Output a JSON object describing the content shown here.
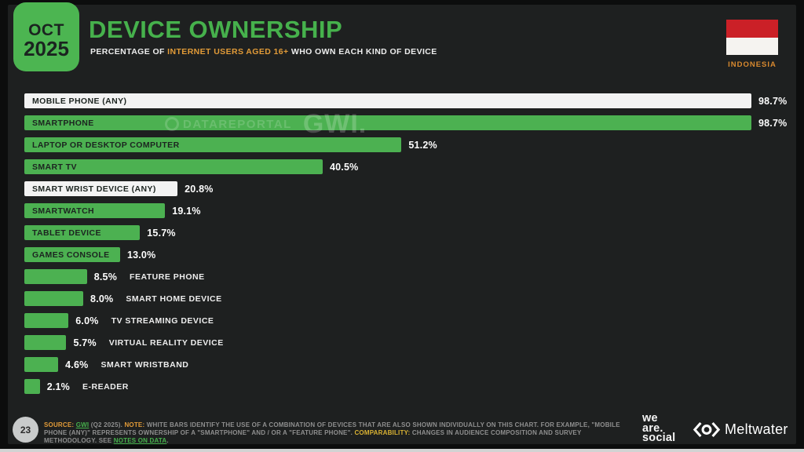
{
  "header": {
    "badge": {
      "month": "OCT",
      "year": "2025"
    },
    "title": "DEVICE OWNERSHIP",
    "subtitle_segments": [
      {
        "text": "PERCENTAGE OF ",
        "style": "sub"
      },
      {
        "text": "INTERNET USERS AGED 16+",
        "style": "accent"
      },
      {
        "text": " WHO OWN EACH KIND OF DEVICE",
        "style": "sub"
      }
    ],
    "country": "INDONESIA"
  },
  "chart_data": {
    "type": "bar",
    "orientation": "horizontal",
    "title": "DEVICE OWNERSHIP",
    "xlabel": "",
    "ylabel": "",
    "unit": "percent",
    "xlim": [
      0,
      100
    ],
    "grid": false,
    "legend": "none",
    "categories": [
      "MOBILE PHONE (ANY)",
      "SMARTPHONE",
      "LAPTOP OR DESKTOP COMPUTER",
      "SMART TV",
      "SMART WRIST DEVICE (ANY)",
      "SMARTWATCH",
      "TABLET DEVICE",
      "GAMES CONSOLE",
      "FEATURE PHONE",
      "SMART HOME DEVICE",
      "TV STREAMING DEVICE",
      "VIRTUAL REALITY DEVICE",
      "SMART WRISTBAND",
      "E-READER"
    ],
    "values": [
      98.7,
      98.7,
      51.2,
      40.5,
      20.8,
      19.1,
      15.7,
      13.0,
      8.5,
      8.0,
      6.0,
      5.7,
      4.6,
      2.1
    ],
    "value_labels": [
      "98.7%",
      "98.7%",
      "51.2%",
      "40.5%",
      "20.8%",
      "19.1%",
      "15.7%",
      "13.0%",
      "8.5%",
      "8.0%",
      "6.0%",
      "5.7%",
      "4.6%",
      "2.1%"
    ],
    "white_bar_indices": [
      0,
      4
    ],
    "outside_label_start_index": 8
  },
  "watermark": {
    "brand": "DATAREPORTAL",
    "gwi": "GWI."
  },
  "footer": {
    "page_number": "23",
    "note_segments": [
      {
        "text": "SOURCE:",
        "style": "accent"
      },
      {
        "text": " ",
        "style": "plain"
      },
      {
        "text": "GWI",
        "style": "link"
      },
      {
        "text": " (Q2 2025). ",
        "style": "plain"
      },
      {
        "text": "NOTE:",
        "style": "accent"
      },
      {
        "text": " WHITE BARS IDENTIFY THE USE OF A COMBINATION OF DEVICES THAT ARE ALSO SHOWN INDIVIDUALLY ON THIS CHART. FOR EXAMPLE, \"MOBILE PHONE (ANY)\" REPRESENTS OWNERSHIP OF A \"SMARTPHONE\" AND / OR A \"FEATURE PHONE\". ",
        "style": "plain"
      },
      {
        "text": "COMPARABILITY:",
        "style": "accent2"
      },
      {
        "text": " CHANGES IN AUDIENCE COMPOSITION AND SURVEY METHODOLOGY. SEE ",
        "style": "plain"
      },
      {
        "text": "NOTES ON DATA",
        "style": "link"
      },
      {
        "text": ".",
        "style": "plain"
      }
    ],
    "logos": {
      "we_are_social_lines": [
        "we",
        "are.",
        "social"
      ],
      "meltwater": "Meltwater"
    }
  },
  "colors": {
    "green": "#4cb151",
    "title_green": "#46b14c",
    "orange": "#e29b38",
    "yellow": "#d9b233",
    "white_bar": "#f3f3f3",
    "panel_bg": "#1e2020",
    "flag_red": "#cb2027",
    "value_text": "#ffffff"
  }
}
